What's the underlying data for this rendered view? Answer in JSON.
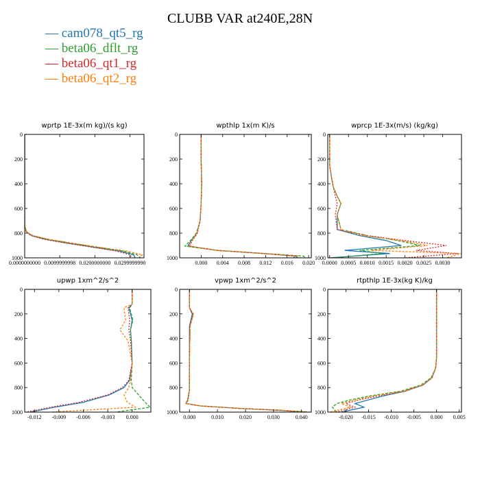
{
  "title": "CLUBB VAR at240E,28N",
  "legend": [
    {
      "label": "cam078_qt5_rg",
      "color": "#1f77b4"
    },
    {
      "label": "beta06_dflt_rg",
      "color": "#2ca02c"
    },
    {
      "label": "beta06_qt1_rg",
      "color": "#d62728"
    },
    {
      "label": "beta06_qt2_rg",
      "color": "#ff7f0e"
    }
  ],
  "chart_data": [
    {
      "type": "line",
      "title": "wprtp  1E-3x(m kg)/(s kg)",
      "xlim": [
        0,
        0.034
      ],
      "ylim": [
        0,
        1000
      ],
      "y_inverted": true,
      "xticks": [
        0.0,
        0.01,
        0.02,
        0.03
      ],
      "xtick_labels": [
        "0.0000000000",
        "0.0099999998",
        "0.0200000000",
        "0.0299999990"
      ],
      "yticks": [
        0,
        200,
        400,
        600,
        800,
        1000
      ],
      "series": [
        {
          "x": [
            0,
            0,
            0,
            0,
            0.0005,
            0.002,
            0.006,
            0.012,
            0.02,
            0.027,
            0.031,
            0.0315
          ],
          "y": [
            0,
            200,
            500,
            740,
            790,
            820,
            850,
            880,
            915,
            945,
            975,
            1000
          ]
        },
        {
          "x": [
            0,
            0,
            0,
            0,
            0.0005,
            0.0022,
            0.0065,
            0.013,
            0.021,
            0.028,
            0.032,
            0.033
          ],
          "y": [
            0,
            200,
            500,
            740,
            790,
            820,
            850,
            880,
            915,
            945,
            975,
            1000
          ]
        },
        {
          "x": [
            0,
            0,
            0,
            0,
            0.0004,
            0.0018,
            0.0055,
            0.0115,
            0.0195,
            0.026,
            0.03,
            0.0305
          ],
          "y": [
            0,
            200,
            500,
            740,
            790,
            820,
            850,
            880,
            915,
            945,
            975,
            1000
          ]
        },
        {
          "x": [
            0,
            0,
            0,
            0,
            0.0006,
            0.0024,
            0.007,
            0.0135,
            0.0215,
            0.029,
            0.0335,
            0.0325
          ],
          "y": [
            0,
            200,
            500,
            740,
            790,
            820,
            850,
            880,
            915,
            945,
            975,
            1000
          ]
        }
      ]
    },
    {
      "type": "line",
      "title": "wpthlp  1x(m K)/s",
      "xlim": [
        -0.004,
        0.0205
      ],
      "ylim": [
        0,
        1000
      ],
      "y_inverted": true,
      "xticks": [
        0.0,
        0.004,
        0.008,
        0.012,
        0.016,
        0.02
      ],
      "xtick_labels": [
        "0.000",
        "0.004",
        "0.008",
        "0.012",
        "0.016",
        "0.020"
      ],
      "yticks": [
        0,
        200,
        400,
        600,
        800,
        1000
      ],
      "series": [
        {
          "x": [
            0,
            0,
            0.0001,
            0,
            -0.0002,
            -0.0008,
            -0.0018,
            -0.0025,
            0.003,
            0.01,
            0.0175,
            0.018
          ],
          "y": [
            0,
            200,
            400,
            560,
            700,
            800,
            860,
            905,
            940,
            960,
            985,
            1000
          ]
        },
        {
          "x": [
            0,
            0,
            0.0001,
            0,
            -0.0002,
            -0.0009,
            -0.002,
            -0.003,
            0.003,
            0.01,
            0.019,
            0.0195
          ],
          "y": [
            0,
            200,
            400,
            560,
            700,
            800,
            860,
            905,
            940,
            960,
            985,
            1000
          ]
        },
        {
          "x": [
            0,
            0,
            0.0001,
            0,
            -0.0002,
            -0.0007,
            -0.0016,
            -0.0022,
            0.003,
            0.01,
            0.017,
            0.0175
          ],
          "y": [
            0,
            200,
            400,
            560,
            700,
            800,
            860,
            905,
            940,
            960,
            985,
            1000
          ]
        },
        {
          "x": [
            0,
            0,
            0.0001,
            0,
            -0.0002,
            -0.0008,
            -0.0017,
            -0.0023,
            0.003,
            0.01,
            0.018,
            0.0185
          ],
          "y": [
            0,
            200,
            400,
            560,
            700,
            800,
            860,
            905,
            940,
            960,
            985,
            1000
          ]
        }
      ]
    },
    {
      "type": "line",
      "title": "wprcp  1E-3x(m/s) (kg/kg)",
      "xlim": [
        -5e-05,
        0.0035
      ],
      "ylim": [
        0,
        1000
      ],
      "y_inverted": true,
      "xticks": [
        0.0,
        0.0005,
        0.001,
        0.0015,
        0.002,
        0.0025,
        0.003
      ],
      "xtick_labels": [
        "0.0000",
        "0.0005",
        "0.0010",
        "0.0015",
        "0.0020",
        "0.0025",
        "0.0030"
      ],
      "yticks": [
        0,
        200,
        400,
        600,
        800,
        1000
      ],
      "series": [
        {
          "x": [
            0,
            0,
            5e-05,
            0.0001,
            0.0002,
            0.0003,
            0.0002,
            0.0002,
            0.0008,
            0.0015,
            0.0019,
            0.0004,
            0.0016,
            0.0
          ],
          "y": [
            0,
            250,
            350,
            430,
            500,
            560,
            650,
            770,
            820,
            860,
            900,
            940,
            965,
            1000
          ]
        },
        {
          "x": [
            0,
            0,
            5e-05,
            0.0001,
            0.0002,
            0.0003,
            0.0002,
            0.0003,
            0.001,
            0.0018,
            0.0024,
            0.0008,
            0.0014,
            0.0001
          ],
          "y": [
            0,
            250,
            350,
            430,
            500,
            560,
            650,
            770,
            820,
            860,
            900,
            940,
            965,
            1000
          ]
        },
        {
          "x": [
            0,
            0,
            5e-05,
            0.0001,
            0.00015,
            0.0002,
            0.00015,
            0.0002,
            0.001,
            0.002,
            0.0031,
            0.0023,
            0.0034,
            0.002
          ],
          "y": [
            0,
            250,
            350,
            430,
            500,
            560,
            650,
            770,
            820,
            860,
            900,
            940,
            965,
            1000
          ]
        },
        {
          "x": [
            0,
            0,
            5e-05,
            0.0001,
            0.0002,
            0.0003,
            0.0002,
            0.0003,
            0.0009,
            0.0019,
            0.0026,
            0.0011,
            0.0035,
            0.0031
          ],
          "y": [
            0,
            250,
            350,
            430,
            500,
            560,
            650,
            770,
            820,
            860,
            900,
            940,
            965,
            1000
          ]
        }
      ]
    },
    {
      "type": "line",
      "title": "upwp   1xm^2/s^2",
      "xlim": [
        -0.0132,
        0.0023
      ],
      "ylim": [
        0,
        1000
      ],
      "y_inverted": true,
      "xticks": [
        -0.012,
        -0.009,
        -0.006,
        -0.003,
        0.0
      ],
      "xtick_labels": [
        "-0.012",
        "-0.009",
        "-0.006",
        "-0.003",
        "0.000"
      ],
      "yticks": [
        0,
        200,
        400,
        600,
        800,
        1000
      ],
      "series": [
        {
          "x": [
            0,
            0,
            -0.0004,
            0,
            -0.0002,
            -0.0001,
            0,
            -0.0003,
            -0.001,
            -0.0028,
            -0.006,
            -0.0095,
            -0.0125
          ],
          "y": [
            0,
            120,
            150,
            250,
            330,
            420,
            600,
            740,
            800,
            860,
            920,
            960,
            1000
          ]
        },
        {
          "x": [
            0,
            0,
            -0.0003,
            0.0001,
            -0.0002,
            -0.0001,
            0,
            -0.0001,
            0.0,
            0.0008,
            0.0016,
            0.0022,
            -0.002
          ],
          "y": [
            0,
            120,
            150,
            250,
            330,
            420,
            600,
            740,
            800,
            860,
            920,
            960,
            1000
          ]
        },
        {
          "x": [
            0,
            0,
            -0.0005,
            -0.0003,
            -0.0004,
            -0.0002,
            0,
            -0.0004,
            -0.0012,
            -0.003,
            -0.0065,
            -0.01,
            -0.013
          ],
          "y": [
            0,
            120,
            150,
            250,
            330,
            420,
            600,
            740,
            800,
            860,
            920,
            960,
            1000
          ]
        },
        {
          "x": [
            0,
            0,
            -0.001,
            -0.0008,
            -0.0015,
            -0.0005,
            0,
            -0.0002,
            -0.0004,
            -0.001,
            -0.0006,
            0.0004,
            -0.01
          ],
          "y": [
            0,
            120,
            150,
            250,
            330,
            420,
            600,
            740,
            800,
            860,
            920,
            960,
            1000
          ]
        }
      ]
    },
    {
      "type": "line",
      "title": "vpwp   1xm^2/s^2",
      "xlim": [
        -0.0035,
        0.0435
      ],
      "ylim": [
        0,
        1000
      ],
      "y_inverted": true,
      "xticks": [
        0.0,
        0.01,
        0.02,
        0.03,
        0.04
      ],
      "xtick_labels": [
        "0.000",
        "0.010",
        "0.020",
        "0.030",
        "0.040"
      ],
      "yticks": [
        0,
        200,
        400,
        600,
        800,
        1000
      ],
      "series": [
        {
          "x": [
            0,
            0,
            0.001,
            0.0,
            0.0,
            0.0,
            -0.0006,
            -0.0012,
            0.004,
            0.018,
            0.032,
            0.041
          ],
          "y": [
            0,
            150,
            200,
            300,
            600,
            820,
            900,
            930,
            950,
            970,
            985,
            1000
          ]
        },
        {
          "x": [
            0,
            0,
            0.0013,
            0.0002,
            0.0,
            0.0,
            -0.0006,
            -0.0012,
            0.004,
            0.018,
            0.033,
            0.043
          ],
          "y": [
            0,
            150,
            200,
            300,
            600,
            820,
            900,
            930,
            950,
            970,
            985,
            1000
          ]
        },
        {
          "x": [
            0,
            0,
            0.0012,
            0.0001,
            0.0,
            0.0,
            -0.0005,
            -0.001,
            0.004,
            0.018,
            0.032,
            0.042
          ],
          "y": [
            0,
            150,
            200,
            300,
            600,
            820,
            900,
            930,
            950,
            970,
            985,
            1000
          ]
        },
        {
          "x": [
            0,
            0,
            0.0015,
            0.0003,
            0.0,
            0.0,
            -0.0007,
            -0.0014,
            0.004,
            0.018,
            0.033,
            0.042
          ],
          "y": [
            0,
            150,
            200,
            300,
            600,
            820,
            900,
            930,
            950,
            970,
            985,
            1000
          ]
        }
      ]
    },
    {
      "type": "line",
      "title": "rtpthlp  1E-3x(kg K)/kg",
      "xlim": [
        -0.024,
        0.0055
      ],
      "ylim": [
        0,
        1000
      ],
      "y_inverted": true,
      "xticks": [
        -0.02,
        -0.015,
        -0.01,
        -0.005,
        0.0,
        0.005
      ],
      "xtick_labels": [
        "-0.020",
        "-0.015",
        "-0.010",
        "-0.005",
        "0.000",
        "0.005"
      ],
      "yticks": [
        0,
        200,
        400,
        600,
        800,
        1000
      ],
      "series": [
        {
          "x": [
            0,
            0,
            0,
            0,
            -0.0002,
            -0.001,
            -0.003,
            -0.007,
            -0.012,
            -0.015,
            -0.018,
            -0.016,
            -0.021
          ],
          "y": [
            0,
            200,
            400,
            560,
            640,
            720,
            780,
            830,
            870,
            900,
            930,
            960,
            1000
          ]
        },
        {
          "x": [
            0,
            0,
            0,
            0,
            -0.0002,
            -0.0012,
            -0.0035,
            -0.008,
            -0.015,
            -0.019,
            -0.022,
            -0.023,
            -0.022
          ],
          "y": [
            0,
            200,
            400,
            560,
            640,
            720,
            780,
            830,
            870,
            900,
            930,
            960,
            1000
          ]
        },
        {
          "x": [
            0,
            0,
            0,
            0,
            -0.0002,
            -0.001,
            -0.003,
            -0.0072,
            -0.013,
            -0.017,
            -0.02,
            -0.018,
            -0.022
          ],
          "y": [
            0,
            200,
            400,
            560,
            640,
            720,
            780,
            830,
            870,
            900,
            930,
            960,
            1000
          ]
        },
        {
          "x": [
            0,
            0,
            0,
            0,
            -0.0002,
            -0.0011,
            -0.0032,
            -0.0075,
            -0.014,
            -0.018,
            -0.021,
            -0.019,
            -0.0235
          ],
          "y": [
            0,
            200,
            400,
            560,
            640,
            720,
            780,
            830,
            870,
            900,
            930,
            960,
            1000
          ]
        }
      ]
    }
  ]
}
